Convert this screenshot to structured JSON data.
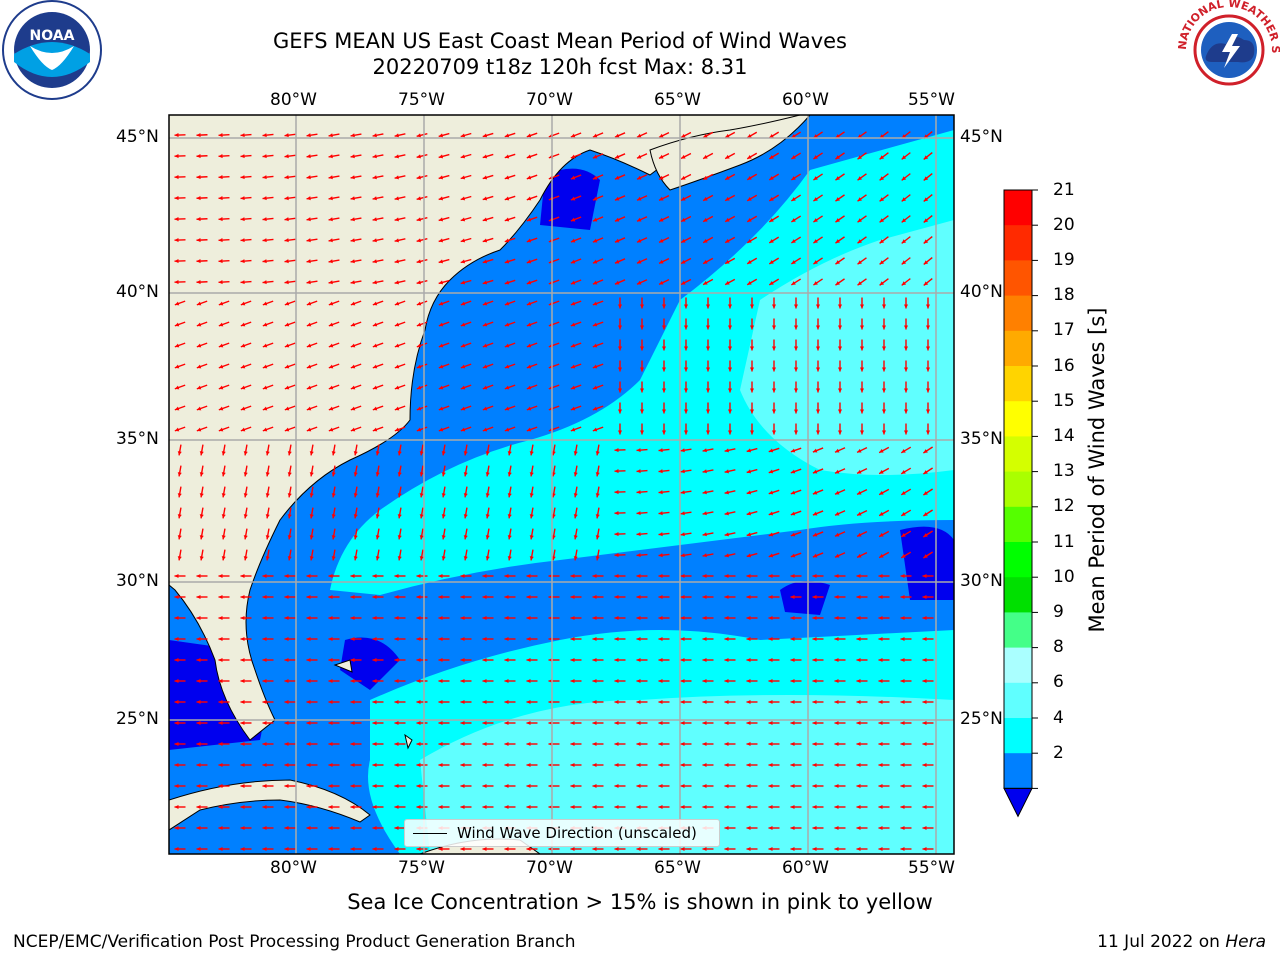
{
  "title": {
    "line1": "GEFS MEAN US East Coast Mean Period of Wind Waves",
    "line2": "20220709 t18z 120h fcst   Max: 8.31"
  },
  "map": {
    "lon_labels": [
      "80°W",
      "75°W",
      "70°W",
      "65°W",
      "60°W",
      "55°W"
    ],
    "lat_labels": [
      "45°N",
      "40°N",
      "35°N",
      "30°N",
      "25°N"
    ],
    "legend_label": "Wind Wave Direction (unscaled)",
    "colors": {
      "land": "#eeeedc",
      "ocean_2_4": "#0080ff",
      "ocean_4_6": "#00ffff",
      "ocean_6_8": "#60ffff",
      "ocean_lt2": "#0000ee",
      "arrow": "#ff0000"
    }
  },
  "colorbar": {
    "label": "Mean Period of Wind Waves [s]",
    "ticks": [
      "21",
      "20",
      "19",
      "18",
      "17",
      "16",
      "15",
      "14",
      "13",
      "12",
      "11",
      "10",
      "9",
      "8",
      "6",
      "4",
      "2"
    ],
    "colors": [
      "#ff0000",
      "#ff2a00",
      "#ff5500",
      "#ff8000",
      "#ffaa00",
      "#ffd400",
      "#ffff00",
      "#d4ff00",
      "#aaff00",
      "#55ff00",
      "#00ff00",
      "#00e000",
      "#44ff88",
      "#aaffff",
      "#60ffff",
      "#00ffff",
      "#0080ff"
    ],
    "extend_color": "#0000ee"
  },
  "note": "Sea Ice Concentration > 15% is shown in pink to yellow",
  "footer": {
    "left": "NCEP/EMC/Verification Post Processing Product Generation Branch",
    "date": "11 Jul 2022 on ",
    "host": "Hera"
  },
  "logos": {
    "noaa_text": "NOAA",
    "nws_text": "NATIONAL WEATHER SERVICE"
  }
}
